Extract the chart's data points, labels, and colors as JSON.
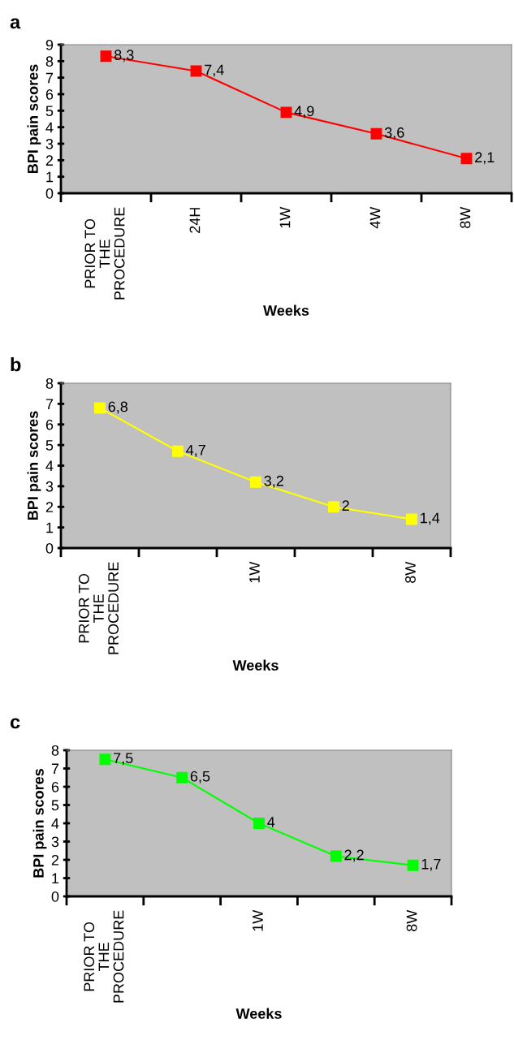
{
  "chart_data": [
    {
      "type": "line",
      "title": "a",
      "xlabel": "Weeks",
      "ylabel": "BPI pain scores",
      "categories": [
        "PRIOR TO\nTHE\nPROCEDURE",
        "24H",
        "1W",
        "4W",
        "8W"
      ],
      "series": [
        {
          "color": "#ff0000",
          "values": [
            8.3,
            7.4,
            4.9,
            3.6,
            2.1
          ],
          "value_labels": [
            "8,3",
            "7,4",
            "4,9",
            "3,6",
            "2,1"
          ]
        }
      ],
      "ylim": [
        0,
        9
      ],
      "yticks": [
        0,
        1,
        2,
        3,
        4,
        5,
        6,
        7,
        8,
        9
      ],
      "marker": "square",
      "line_style": "solid",
      "grid": false,
      "legend": false
    },
    {
      "type": "line",
      "title": "b",
      "xlabel": "Weeks",
      "ylabel": "BPI pain scores",
      "categories": [
        "PRIOR TO\nTHE\nPROCEDURE",
        null,
        "1W",
        null,
        "8W"
      ],
      "series": [
        {
          "color": "#ffff00",
          "values": [
            6.8,
            4.7,
            3.2,
            2,
            1.4
          ],
          "value_labels": [
            "6,8",
            "4,7",
            "3,2",
            "2",
            "1,4"
          ]
        }
      ],
      "ylim": [
        0,
        8
      ],
      "yticks": [
        0,
        1,
        2,
        3,
        4,
        5,
        6,
        7,
        8
      ],
      "marker": "square",
      "line_style": "solid",
      "grid": false,
      "legend": false
    },
    {
      "type": "line",
      "title": "c",
      "xlabel": "Weeks",
      "ylabel": "BPI pain scores",
      "categories": [
        "PRIOR TO\nTHE\nPROCEDURE",
        null,
        "1W",
        null,
        "8W"
      ],
      "series": [
        {
          "color": "#00ff00",
          "values": [
            7.5,
            6.5,
            4,
            2.2,
            1.7
          ],
          "value_labels": [
            "7,5",
            "6,5",
            "4",
            "2,2",
            "1,7"
          ]
        }
      ],
      "ylim": [
        0,
        8
      ],
      "yticks": [
        0,
        1,
        2,
        3,
        4,
        5,
        6,
        7,
        8
      ],
      "marker": "square",
      "line_style": "solid",
      "grid": false,
      "legend": false
    }
  ]
}
